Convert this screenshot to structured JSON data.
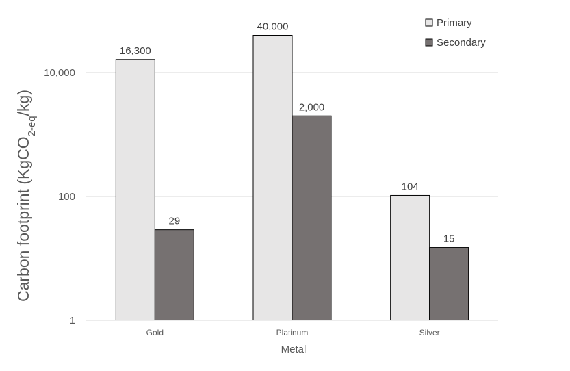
{
  "chart_data": {
    "type": "bar",
    "title": "",
    "xlabel": "Metal",
    "ylabel_parts": {
      "before": "Carbon footprint (KgCO",
      "subscript": "2-eq",
      "after": "/kg)"
    },
    "y_scale": "log",
    "ylim": [
      1,
      40000
    ],
    "y_ticks": [
      1,
      100,
      10000
    ],
    "y_tick_labels": [
      "1",
      "100",
      "10,000"
    ],
    "categories": [
      "Gold",
      "Platinum",
      "Silver"
    ],
    "series": [
      {
        "name": "Primary",
        "color": "#e7e6e6",
        "values": [
          16300,
          40000,
          104
        ],
        "labels": [
          "16,300",
          "40,000",
          "104"
        ]
      },
      {
        "name": "Secondary",
        "color": "#767171",
        "values": [
          29,
          2000,
          15
        ],
        "labels": [
          "29",
          "2,000",
          "15"
        ]
      }
    ],
    "grid": true,
    "legend_position": "top-right"
  }
}
